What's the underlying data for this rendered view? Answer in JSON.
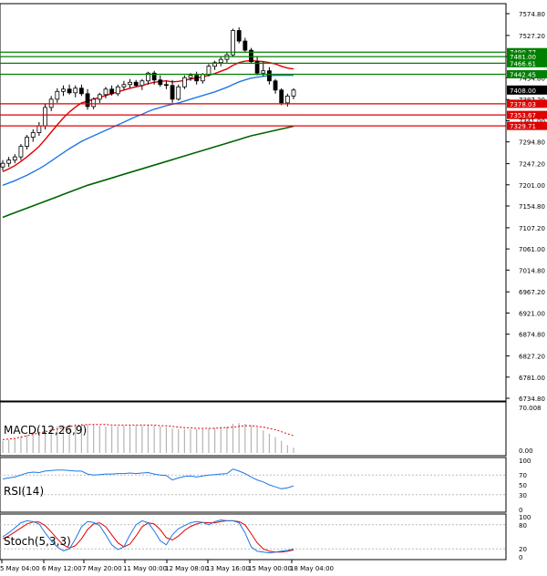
{
  "colors": {
    "background": "#ffffff",
    "axis": "#000000",
    "candle_up": "#ffffff",
    "candle_down": "#000000",
    "ma_fast": "#e00000",
    "ma_mid": "#1e78e6",
    "ma_slow": "#006400",
    "resistance_line": "#008000",
    "support_line": "#e00000",
    "macd_hist": "#b4b4b4",
    "macd_signal": "#e00000",
    "rsi_line": "#1e78e6",
    "stoch_main": "#1e78e6",
    "stoch_signal": "#e00000",
    "label_green": "#008000",
    "label_red": "#e00000",
    "label_current": "#000000"
  },
  "chart_data": [
    {
      "type": "candlestick",
      "title": "",
      "ylim": [
        6715,
        7575
      ],
      "y_ticks": [
        "7574.80",
        "7527.20",
        "7481.00",
        "7434.80",
        "7387.20",
        "7341.00",
        "7294.80",
        "7247.20",
        "7201.00",
        "7154.80",
        "7107.20",
        "7061.00",
        "7014.80",
        "6967.20",
        "6921.00",
        "6874.80",
        "6827.20",
        "6781.00",
        "6734.80"
      ],
      "x_ticks": [
        "5 May 04:00",
        "6 May 12:00",
        "7 May 20:00",
        "11 May 00:00",
        "12 May 08:00",
        "13 May 16:00",
        "15 May 00:00",
        "18 May 04:00"
      ],
      "ohlc": [
        [
          7240,
          7255,
          7232,
          7248
        ],
        [
          7248,
          7262,
          7240,
          7255
        ],
        [
          7255,
          7268,
          7248,
          7262
        ],
        [
          7262,
          7290,
          7255,
          7285
        ],
        [
          7285,
          7310,
          7278,
          7305
        ],
        [
          7305,
          7322,
          7295,
          7315
        ],
        [
          7315,
          7338,
          7308,
          7330
        ],
        [
          7330,
          7378,
          7322,
          7370
        ],
        [
          7370,
          7395,
          7362,
          7388
        ],
        [
          7388,
          7412,
          7380,
          7405
        ],
        [
          7405,
          7418,
          7395,
          7410
        ],
        [
          7410,
          7420,
          7398,
          7402
        ],
        [
          7402,
          7418,
          7392,
          7412
        ],
        [
          7412,
          7420,
          7395,
          7400
        ],
        [
          7400,
          7410,
          7365,
          7372
        ],
        [
          7372,
          7392,
          7366,
          7388
        ],
        [
          7388,
          7402,
          7380,
          7398
        ],
        [
          7398,
          7415,
          7390,
          7410
        ],
        [
          7410,
          7418,
          7396,
          7400
        ],
        [
          7400,
          7420,
          7395,
          7415
        ],
        [
          7415,
          7428,
          7408,
          7420
        ],
        [
          7420,
          7432,
          7412,
          7425
        ],
        [
          7425,
          7430,
          7415,
          7418
        ],
        [
          7418,
          7432,
          7408,
          7428
        ],
        [
          7428,
          7448,
          7420,
          7445
        ],
        [
          7445,
          7450,
          7420,
          7430
        ],
        [
          7430,
          7440,
          7415,
          7420
        ],
        [
          7420,
          7428,
          7410,
          7418
        ],
        [
          7418,
          7430,
          7380,
          7388
        ],
        [
          7388,
          7420,
          7385,
          7415
        ],
        [
          7415,
          7440,
          7410,
          7435
        ],
        [
          7435,
          7445,
          7428,
          7440
        ],
        [
          7440,
          7448,
          7420,
          7428
        ],
        [
          7428,
          7445,
          7422,
          7442
        ],
        [
          7442,
          7465,
          7438,
          7460
        ],
        [
          7460,
          7472,
          7452,
          7468
        ],
        [
          7468,
          7480,
          7460,
          7475
        ],
        [
          7475,
          7490,
          7468,
          7485
        ],
        [
          7485,
          7542,
          7480,
          7538
        ],
        [
          7538,
          7545,
          7510,
          7515
        ],
        [
          7515,
          7522,
          7490,
          7495
        ],
        [
          7495,
          7500,
          7465,
          7470
        ],
        [
          7470,
          7482,
          7440,
          7445
        ],
        [
          7445,
          7470,
          7438,
          7450
        ],
        [
          7450,
          7458,
          7420,
          7428
        ],
        [
          7428,
          7432,
          7400,
          7408
        ],
        [
          7408,
          7412,
          7375,
          7380
        ],
        [
          7380,
          7400,
          7372,
          7395
        ],
        [
          7395,
          7412,
          7388,
          7408
        ]
      ],
      "ma_fast": [
        7230,
        7236,
        7243,
        7252,
        7262,
        7273,
        7285,
        7300,
        7316,
        7332,
        7347,
        7360,
        7371,
        7380,
        7384,
        7388,
        7392,
        7396,
        7400,
        7404,
        7408,
        7412,
        7415,
        7418,
        7422,
        7425,
        7427,
        7428,
        7426,
        7427,
        7429,
        7432,
        7434,
        7437,
        7440,
        7444,
        7449,
        7454,
        7462,
        7468,
        7471,
        7472,
        7471,
        7470,
        7468,
        7465,
        7460,
        7456,
        7454
      ],
      "ma_mid": [
        7200,
        7205,
        7210,
        7216,
        7222,
        7229,
        7236,
        7244,
        7253,
        7262,
        7271,
        7280,
        7288,
        7296,
        7302,
        7308,
        7314,
        7320,
        7326,
        7332,
        7338,
        7344,
        7350,
        7355,
        7361,
        7366,
        7370,
        7374,
        7377,
        7380,
        7384,
        7388,
        7392,
        7396,
        7400,
        7404,
        7409,
        7414,
        7420,
        7426,
        7430,
        7434,
        7436,
        7438,
        7439,
        7440,
        7440,
        7440,
        7440
      ],
      "ma_slow": [
        7130,
        7135,
        7140,
        7145,
        7150,
        7155,
        7160,
        7165,
        7170,
        7175,
        7180,
        7185,
        7190,
        7195,
        7200,
        7204,
        7208,
        7212,
        7216,
        7220,
        7224,
        7228,
        7232,
        7236,
        7240,
        7244,
        7248,
        7252,
        7256,
        7260,
        7264,
        7268,
        7272,
        7276,
        7280,
        7284,
        7288,
        7292,
        7296,
        7300,
        7304,
        7308,
        7311,
        7314,
        7317,
        7320,
        7323,
        7326,
        7329
      ],
      "levels": [
        {
          "label": "7490.77",
          "value": 7490.77,
          "kind": "resistance"
        },
        {
          "label": "7481.00",
          "value": 7481.0,
          "kind": "resistance"
        },
        {
          "label": "7466.61",
          "value": 7466.61,
          "kind": "resistance"
        },
        {
          "label": "7442.45",
          "value": 7442.45,
          "kind": "resistance"
        },
        {
          "label": "7378.03",
          "value": 7378.03,
          "kind": "support"
        },
        {
          "label": "7353.67",
          "value": 7353.67,
          "kind": "support"
        },
        {
          "label": "7329.71",
          "value": 7329.71,
          "kind": "support"
        }
      ],
      "current": {
        "label": "7408.00",
        "value": 7408.0
      }
    },
    {
      "type": "histogram",
      "title": "MACD(12,26,9)",
      "ylim": [
        0,
        70.008
      ],
      "y_ticks": [
        "70.008",
        "0.00"
      ],
      "histogram": [
        18,
        20,
        22,
        24,
        27,
        30,
        32,
        35,
        38,
        40,
        42,
        43,
        44,
        44,
        43,
        42,
        41,
        40,
        40,
        40,
        41,
        41,
        41,
        41,
        42,
        41,
        40,
        39,
        37,
        36,
        36,
        36,
        36,
        36,
        37,
        38,
        39,
        40,
        44,
        45,
        44,
        42,
        38,
        34,
        29,
        24,
        18,
        12,
        8
      ],
      "signal": [
        20,
        21,
        22,
        24,
        26,
        28,
        30,
        32,
        34,
        36,
        38,
        40,
        41,
        42,
        43,
        43,
        43,
        43,
        42,
        42,
        42,
        42,
        42,
        42,
        42,
        42,
        41,
        41,
        40,
        39,
        38,
        38,
        37,
        37,
        37,
        37,
        38,
        38,
        39,
        40,
        41,
        41,
        40,
        39,
        37,
        35,
        32,
        29,
        26
      ]
    },
    {
      "type": "line",
      "title": "RSI(14)",
      "ylim": [
        0,
        100
      ],
      "y_ticks": [
        "100",
        "70",
        "50",
        "30",
        "0"
      ],
      "values": [
        62,
        64,
        66,
        70,
        74,
        76,
        75,
        78,
        79,
        80,
        80,
        79,
        78,
        78,
        72,
        70,
        71,
        72,
        72,
        73,
        73,
        74,
        73,
        74,
        75,
        72,
        70,
        69,
        60,
        64,
        67,
        68,
        66,
        68,
        70,
        71,
        72,
        73,
        82,
        78,
        73,
        66,
        60,
        56,
        50,
        46,
        42,
        44,
        48
      ]
    },
    {
      "type": "line",
      "title": "Stoch(5,3,3)",
      "ylim": [
        0,
        100
      ],
      "y_ticks": [
        "100",
        "80",
        "20",
        "0"
      ],
      "main": [
        50,
        60,
        72,
        85,
        90,
        88,
        82,
        60,
        40,
        25,
        15,
        20,
        45,
        75,
        88,
        86,
        78,
        55,
        30,
        18,
        25,
        55,
        80,
        90,
        85,
        65,
        40,
        30,
        55,
        70,
        78,
        85,
        88,
        86,
        80,
        88,
        92,
        90,
        90,
        85,
        60,
        25,
        14,
        12,
        10,
        12,
        14,
        16,
        20
      ],
      "signal": [
        45,
        52,
        62,
        72,
        82,
        87,
        87,
        78,
        62,
        45,
        30,
        22,
        28,
        45,
        68,
        82,
        85,
        75,
        55,
        35,
        25,
        32,
        52,
        75,
        85,
        82,
        68,
        48,
        42,
        52,
        66,
        76,
        82,
        86,
        85,
        85,
        88,
        90,
        90,
        88,
        80,
        58,
        35,
        20,
        14,
        12,
        12,
        14,
        17
      ]
    }
  ]
}
